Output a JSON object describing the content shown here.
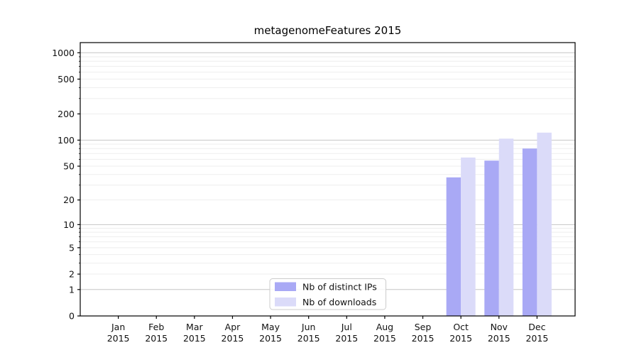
{
  "chart_data": {
    "type": "bar",
    "title": "metagenomeFeatures 2015",
    "categories": [
      "Jan",
      "Feb",
      "Mar",
      "Apr",
      "May",
      "Jun",
      "Jul",
      "Aug",
      "Sep",
      "Oct",
      "Nov",
      "Dec"
    ],
    "tick_year": "2015",
    "series": [
      {
        "name": "Nb of distinct IPs",
        "color": "#a9a9f5",
        "values": [
          0,
          0,
          0,
          0,
          0,
          0,
          0,
          0,
          0,
          37,
          58,
          80
        ]
      },
      {
        "name": "Nb of downloads",
        "color": "#dbdbf9",
        "values": [
          0,
          0,
          0,
          0,
          0,
          0,
          0,
          0,
          0,
          63,
          104,
          122
        ]
      }
    ],
    "yticks": [
      0,
      1,
      2,
      5,
      10,
      20,
      50,
      100,
      200,
      500,
      1000
    ],
    "y_scale": "log10(1+x)",
    "ylim": [
      0,
      1305
    ],
    "grid": {
      "major": [
        1,
        10,
        100,
        1000
      ],
      "minor": [
        2,
        3,
        4,
        5,
        6,
        7,
        8,
        9,
        20,
        30,
        40,
        50,
        60,
        70,
        80,
        90,
        200,
        300,
        400,
        500,
        600,
        700,
        800,
        900
      ]
    },
    "legend": {
      "position": "bottom-center",
      "entries": [
        "Nb of distinct IPs",
        "Nb of downloads"
      ]
    },
    "colors": {
      "grid_major": "#c6c6c6",
      "grid_minor": "#eeeeee",
      "axis": "#000000",
      "text": "#111111",
      "legend_border": "#cccccc",
      "background": "#ffffff"
    }
  }
}
